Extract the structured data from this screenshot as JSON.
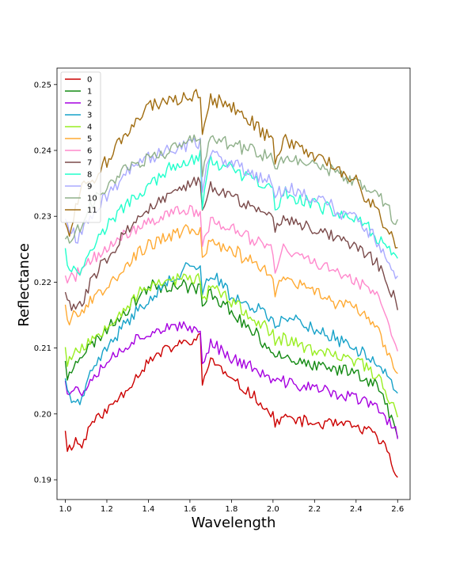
{
  "chart_data": {
    "type": "line",
    "title": "",
    "xlabel": "Wavelength",
    "ylabel": "Reflectance",
    "xlim": [
      0.96,
      2.66
    ],
    "ylim": [
      0.187,
      0.2525
    ],
    "xticks": [
      1.0,
      1.2,
      1.4,
      1.6,
      1.8,
      2.0,
      2.2,
      2.4,
      2.6
    ],
    "xtick_labels": [
      "1.0",
      "1.2",
      "1.4",
      "1.6",
      "1.8",
      "2.0",
      "2.2",
      "2.4",
      "2.6"
    ],
    "yticks": [
      0.19,
      0.2,
      0.21,
      0.22,
      0.23,
      0.24,
      0.25
    ],
    "ytick_labels": [
      "0.19",
      "0.20",
      "0.21",
      "0.22",
      "0.23",
      "0.24",
      "0.25"
    ],
    "grid": false,
    "legend": {
      "position": "top-left"
    },
    "series": [
      {
        "name": "0",
        "color": "#cc0000",
        "noise": 0.001,
        "seed": 11,
        "points": [
          [
            1.0,
            0.1978
          ],
          [
            1.01,
            0.1945
          ],
          [
            1.05,
            0.196
          ],
          [
            1.08,
            0.195
          ],
          [
            1.12,
            0.1985
          ],
          [
            1.2,
            0.2005
          ],
          [
            1.3,
            0.204
          ],
          [
            1.4,
            0.208
          ],
          [
            1.5,
            0.21
          ],
          [
            1.6,
            0.211
          ],
          [
            1.65,
            0.2115
          ],
          [
            1.66,
            0.2045
          ],
          [
            1.7,
            0.2085
          ],
          [
            1.8,
            0.205
          ],
          [
            1.9,
            0.203
          ],
          [
            2.0,
            0.1995
          ],
          [
            2.01,
            0.1985
          ],
          [
            2.05,
            0.1995
          ],
          [
            2.2,
            0.1985
          ],
          [
            2.3,
            0.1985
          ],
          [
            2.4,
            0.198
          ],
          [
            2.45,
            0.1975
          ],
          [
            2.5,
            0.1965
          ],
          [
            2.55,
            0.1945
          ],
          [
            2.6,
            0.19
          ]
        ]
      },
      {
        "name": "1",
        "color": "#138a13",
        "noise": 0.0012,
        "seed": 23,
        "points": [
          [
            1.0,
            0.2085
          ],
          [
            1.01,
            0.205
          ],
          [
            1.05,
            0.2085
          ],
          [
            1.1,
            0.2095
          ],
          [
            1.2,
            0.213
          ],
          [
            1.3,
            0.216
          ],
          [
            1.4,
            0.2195
          ],
          [
            1.5,
            0.2195
          ],
          [
            1.6,
            0.2195
          ],
          [
            1.65,
            0.219
          ],
          [
            1.66,
            0.216
          ],
          [
            1.7,
            0.2185
          ],
          [
            1.8,
            0.2155
          ],
          [
            1.9,
            0.2125
          ],
          [
            2.0,
            0.2095
          ],
          [
            2.05,
            0.209
          ],
          [
            2.2,
            0.207
          ],
          [
            2.4,
            0.2065
          ],
          [
            2.5,
            0.2045
          ],
          [
            2.6,
            0.197
          ]
        ]
      },
      {
        "name": "2",
        "color": "#a600e0",
        "noise": 0.0011,
        "seed": 37,
        "points": [
          [
            1.0,
            0.2055
          ],
          [
            1.01,
            0.2035
          ],
          [
            1.05,
            0.204
          ],
          [
            1.08,
            0.203
          ],
          [
            1.12,
            0.2055
          ],
          [
            1.2,
            0.208
          ],
          [
            1.3,
            0.2105
          ],
          [
            1.4,
            0.2125
          ],
          [
            1.5,
            0.213
          ],
          [
            1.6,
            0.213
          ],
          [
            1.65,
            0.213
          ],
          [
            1.66,
            0.207
          ],
          [
            1.7,
            0.211
          ],
          [
            1.8,
            0.2085
          ],
          [
            1.9,
            0.207
          ],
          [
            2.0,
            0.205
          ],
          [
            2.1,
            0.2045
          ],
          [
            2.2,
            0.204
          ],
          [
            2.3,
            0.203
          ],
          [
            2.4,
            0.2025
          ],
          [
            2.5,
            0.201
          ],
          [
            2.6,
            0.197
          ]
        ]
      },
      {
        "name": "3",
        "color": "#17a2c9",
        "noise": 0.0012,
        "seed": 41,
        "points": [
          [
            1.0,
            0.206
          ],
          [
            1.01,
            0.203
          ],
          [
            1.05,
            0.202
          ],
          [
            1.08,
            0.2015
          ],
          [
            1.12,
            0.206
          ],
          [
            1.2,
            0.21
          ],
          [
            1.3,
            0.214
          ],
          [
            1.4,
            0.2175
          ],
          [
            1.5,
            0.22
          ],
          [
            1.6,
            0.2225
          ],
          [
            1.65,
            0.223
          ],
          [
            1.66,
            0.218
          ],
          [
            1.7,
            0.2215
          ],
          [
            1.8,
            0.218
          ],
          [
            1.9,
            0.2165
          ],
          [
            2.0,
            0.2145
          ],
          [
            2.01,
            0.2125
          ],
          [
            2.05,
            0.215
          ],
          [
            2.2,
            0.213
          ],
          [
            2.3,
            0.2115
          ],
          [
            2.4,
            0.21
          ],
          [
            2.5,
            0.208
          ],
          [
            2.6,
            0.203
          ]
        ]
      },
      {
        "name": "4",
        "color": "#99ee22",
        "noise": 0.0012,
        "seed": 53,
        "points": [
          [
            1.0,
            0.2105
          ],
          [
            1.01,
            0.208
          ],
          [
            1.05,
            0.2095
          ],
          [
            1.1,
            0.2105
          ],
          [
            1.2,
            0.2135
          ],
          [
            1.3,
            0.2165
          ],
          [
            1.4,
            0.2195
          ],
          [
            1.5,
            0.2205
          ],
          [
            1.6,
            0.2205
          ],
          [
            1.65,
            0.2205
          ],
          [
            1.66,
            0.217
          ],
          [
            1.7,
            0.2195
          ],
          [
            1.8,
            0.217
          ],
          [
            1.9,
            0.2145
          ],
          [
            2.0,
            0.212
          ],
          [
            2.01,
            0.21
          ],
          [
            2.05,
            0.2115
          ],
          [
            2.2,
            0.2095
          ],
          [
            2.4,
            0.208
          ],
          [
            2.5,
            0.206
          ],
          [
            2.6,
            0.2
          ]
        ]
      },
      {
        "name": "5",
        "color": "#ffaa33",
        "noise": 0.0012,
        "seed": 67,
        "points": [
          [
            1.0,
            0.217
          ],
          [
            1.01,
            0.214
          ],
          [
            1.05,
            0.216
          ],
          [
            1.08,
            0.215
          ],
          [
            1.12,
            0.217
          ],
          [
            1.2,
            0.2195
          ],
          [
            1.3,
            0.223
          ],
          [
            1.4,
            0.2255
          ],
          [
            1.5,
            0.227
          ],
          [
            1.6,
            0.228
          ],
          [
            1.65,
            0.228
          ],
          [
            1.66,
            0.223
          ],
          [
            1.7,
            0.2265
          ],
          [
            1.8,
            0.225
          ],
          [
            1.9,
            0.223
          ],
          [
            2.0,
            0.221
          ],
          [
            2.01,
            0.2185
          ],
          [
            2.05,
            0.2205
          ],
          [
            2.2,
            0.2185
          ],
          [
            2.3,
            0.217
          ],
          [
            2.4,
            0.216
          ],
          [
            2.5,
            0.2135
          ],
          [
            2.6,
            0.205
          ]
        ]
      },
      {
        "name": "6",
        "color": "#ff88cc",
        "noise": 0.0012,
        "seed": 71,
        "points": [
          [
            1.0,
            0.2215
          ],
          [
            1.01,
            0.22
          ],
          [
            1.05,
            0.221
          ],
          [
            1.1,
            0.2225
          ],
          [
            1.2,
            0.225
          ],
          [
            1.3,
            0.2275
          ],
          [
            1.4,
            0.229
          ],
          [
            1.5,
            0.2305
          ],
          [
            1.6,
            0.231
          ],
          [
            1.65,
            0.2305
          ],
          [
            1.66,
            0.225
          ],
          [
            1.7,
            0.2295
          ],
          [
            1.8,
            0.228
          ],
          [
            1.9,
            0.2265
          ],
          [
            2.0,
            0.225
          ],
          [
            2.01,
            0.2215
          ],
          [
            2.05,
            0.225
          ],
          [
            2.2,
            0.223
          ],
          [
            2.3,
            0.2215
          ],
          [
            2.4,
            0.2205
          ],
          [
            2.5,
            0.218
          ],
          [
            2.6,
            0.2095
          ]
        ]
      },
      {
        "name": "7",
        "color": "#7a4a4a",
        "noise": 0.0012,
        "seed": 83,
        "points": [
          [
            1.0,
            0.219
          ],
          [
            1.01,
            0.217
          ],
          [
            1.05,
            0.216
          ],
          [
            1.08,
            0.2165
          ],
          [
            1.12,
            0.22
          ],
          [
            1.2,
            0.224
          ],
          [
            1.3,
            0.228
          ],
          [
            1.4,
            0.231
          ],
          [
            1.5,
            0.233
          ],
          [
            1.6,
            0.235
          ],
          [
            1.65,
            0.235
          ],
          [
            1.66,
            0.23
          ],
          [
            1.7,
            0.2345
          ],
          [
            1.8,
            0.233
          ],
          [
            1.9,
            0.2315
          ],
          [
            2.0,
            0.23
          ],
          [
            2.01,
            0.228
          ],
          [
            2.05,
            0.23
          ],
          [
            2.2,
            0.228
          ],
          [
            2.3,
            0.227
          ],
          [
            2.4,
            0.2255
          ],
          [
            2.5,
            0.223
          ],
          [
            2.6,
            0.2165
          ]
        ]
      },
      {
        "name": "8",
        "color": "#22ffcc",
        "noise": 0.0012,
        "seed": 97,
        "points": [
          [
            1.0,
            0.2255
          ],
          [
            1.01,
            0.223
          ],
          [
            1.05,
            0.2215
          ],
          [
            1.08,
            0.222
          ],
          [
            1.12,
            0.225
          ],
          [
            1.2,
            0.2285
          ],
          [
            1.3,
            0.232
          ],
          [
            1.4,
            0.2345
          ],
          [
            1.5,
            0.237
          ],
          [
            1.6,
            0.2385
          ],
          [
            1.65,
            0.239
          ],
          [
            1.66,
            0.232
          ],
          [
            1.7,
            0.2385
          ],
          [
            1.8,
            0.237
          ],
          [
            1.9,
            0.2355
          ],
          [
            2.0,
            0.234
          ],
          [
            2.01,
            0.2305
          ],
          [
            2.05,
            0.2335
          ],
          [
            2.2,
            0.232
          ],
          [
            2.3,
            0.2305
          ],
          [
            2.4,
            0.2295
          ],
          [
            2.5,
            0.227
          ],
          [
            2.6,
            0.223
          ]
        ]
      },
      {
        "name": "9",
        "color": "#aaaaff",
        "noise": 0.0013,
        "seed": 109,
        "points": [
          [
            1.0,
            0.23
          ],
          [
            1.01,
            0.229
          ],
          [
            1.05,
            0.2265
          ],
          [
            1.08,
            0.2275
          ],
          [
            1.12,
            0.2295
          ],
          [
            1.2,
            0.233
          ],
          [
            1.3,
            0.237
          ],
          [
            1.4,
            0.239
          ],
          [
            1.5,
            0.24
          ],
          [
            1.6,
            0.241
          ],
          [
            1.65,
            0.241
          ],
          [
            1.66,
            0.234
          ],
          [
            1.7,
            0.24
          ],
          [
            1.8,
            0.238
          ],
          [
            1.9,
            0.2365
          ],
          [
            2.0,
            0.235
          ],
          [
            2.01,
            0.2325
          ],
          [
            2.05,
            0.2345
          ],
          [
            2.2,
            0.2325
          ],
          [
            2.3,
            0.231
          ],
          [
            2.4,
            0.2295
          ],
          [
            2.5,
            0.2265
          ],
          [
            2.6,
            0.221
          ]
        ]
      },
      {
        "name": "10",
        "color": "#8fb08a",
        "noise": 0.0012,
        "seed": 127,
        "points": [
          [
            1.0,
            0.227
          ],
          [
            1.01,
            0.2265
          ],
          [
            1.05,
            0.228
          ],
          [
            1.08,
            0.229
          ],
          [
            1.12,
            0.2315
          ],
          [
            1.2,
            0.2345
          ],
          [
            1.3,
            0.2375
          ],
          [
            1.4,
            0.239
          ],
          [
            1.5,
            0.24
          ],
          [
            1.6,
            0.2415
          ],
          [
            1.65,
            0.242
          ],
          [
            1.66,
            0.2365
          ],
          [
            1.7,
            0.242
          ],
          [
            1.8,
            0.241
          ],
          [
            1.9,
            0.24
          ],
          [
            2.0,
            0.239
          ],
          [
            2.01,
            0.2375
          ],
          [
            2.05,
            0.239
          ],
          [
            2.2,
            0.238
          ],
          [
            2.3,
            0.2365
          ],
          [
            2.4,
            0.235
          ],
          [
            2.5,
            0.2335
          ],
          [
            2.6,
            0.229
          ]
        ]
      },
      {
        "name": "11",
        "color": "#a06c10",
        "noise": 0.0013,
        "seed": 139,
        "points": [
          [
            1.0,
            0.2295
          ],
          [
            1.01,
            0.227
          ],
          [
            1.05,
            0.231
          ],
          [
            1.08,
            0.234
          ],
          [
            1.12,
            0.2355
          ],
          [
            1.2,
            0.2385
          ],
          [
            1.3,
            0.243
          ],
          [
            1.4,
            0.2465
          ],
          [
            1.5,
            0.2475
          ],
          [
            1.6,
            0.2485
          ],
          [
            1.65,
            0.2485
          ],
          [
            1.66,
            0.2425
          ],
          [
            1.7,
            0.248
          ],
          [
            1.8,
            0.2465
          ],
          [
            1.9,
            0.244
          ],
          [
            2.0,
            0.2415
          ],
          [
            2.01,
            0.2385
          ],
          [
            2.05,
            0.2415
          ],
          [
            2.2,
            0.2395
          ],
          [
            2.3,
            0.2375
          ],
          [
            2.4,
            0.235
          ],
          [
            2.5,
            0.231
          ],
          [
            2.6,
            0.2255
          ]
        ]
      }
    ]
  }
}
